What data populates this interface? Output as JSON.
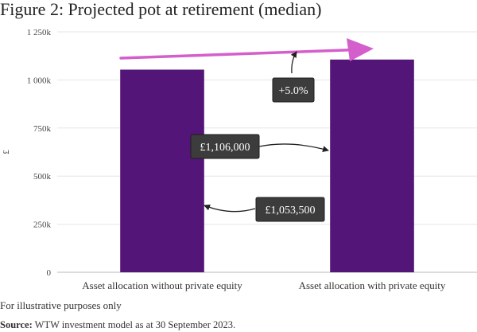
{
  "figure_title": "Figure 2: Projected pot at retirement (median)",
  "footnote": "For illustrative purposes only",
  "source_label": "Source:",
  "source_text": " WTW investment model as at 30 September 2023.",
  "colors": {
    "bar": "#531577",
    "arrow": "#d45fcc",
    "callout_bg": "#3c3c3c",
    "grid": "#e6e6e6"
  },
  "chart_data": {
    "type": "bar",
    "categories": [
      "Asset allocation without private equity",
      "Asset allocation with private equity"
    ],
    "values": [
      1053500,
      1106000
    ],
    "ylabel": "£",
    "ylim": [
      0,
      1250000
    ],
    "yticks": [
      0,
      250000,
      500000,
      750000,
      1000000,
      1250000
    ],
    "ytick_labels": [
      "0",
      "250k",
      "500k",
      "750k",
      "1 000k",
      "1 250k"
    ],
    "grid": true,
    "annotations": {
      "increase": "+5.0%",
      "with_pe_value": "£1,106,000",
      "without_pe_value": "£1,053,500"
    }
  }
}
